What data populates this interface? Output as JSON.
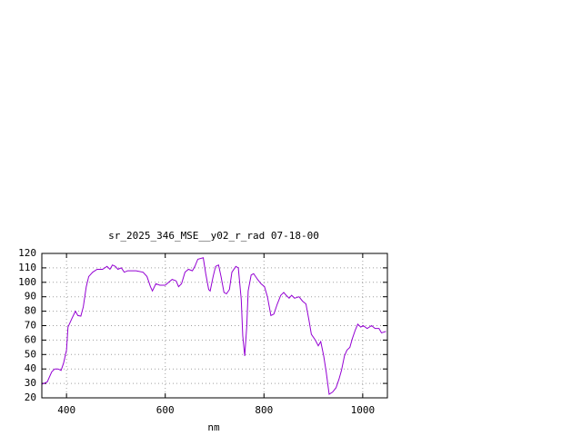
{
  "chart_data": {
    "type": "line",
    "title": "sr_2025_346_MSE__y02_r_rad 07-18-00",
    "x_label": "nm",
    "x": [
      350,
      361,
      370,
      376,
      383,
      389,
      394,
      400,
      403,
      411,
      418,
      423,
      429,
      434,
      440,
      445,
      453,
      462,
      473,
      482,
      488,
      493,
      499,
      504,
      511,
      517,
      524,
      541,
      555,
      563,
      570,
      574,
      581,
      589,
      600,
      607,
      614,
      622,
      627,
      633,
      640,
      647,
      655,
      660,
      666,
      677,
      682,
      688,
      691,
      697,
      702,
      708,
      713,
      719,
      724,
      730,
      735,
      743,
      748,
      754,
      757,
      761,
      765,
      768,
      774,
      779,
      787,
      794,
      801,
      807,
      814,
      820,
      827,
      834,
      840,
      845,
      851,
      856,
      862,
      871,
      878,
      885,
      891,
      896,
      904,
      910,
      915,
      921,
      926,
      932,
      939,
      946,
      952,
      957,
      963,
      968,
      974,
      979,
      985,
      990,
      996,
      1001,
      1009,
      1018,
      1025,
      1033,
      1038,
      1047
    ],
    "series": [
      {
        "color": "#9400d3",
        "values": [
          29.4,
          31,
          38,
          40,
          40,
          39,
          44,
          53,
          69,
          75,
          80,
          77,
          76.6,
          83,
          97,
          104,
          107,
          109,
          109,
          111,
          109,
          112,
          111,
          109,
          110,
          107,
          108,
          108,
          107,
          104,
          97,
          94,
          99,
          98,
          98,
          100,
          102,
          101,
          97,
          99,
          107,
          109,
          108,
          111,
          116,
          117,
          106,
          95,
          94,
          104,
          111,
          112,
          104,
          93,
          92,
          95,
          107,
          111,
          110,
          88,
          63,
          49,
          69,
          94,
          105,
          106,
          102,
          99,
          97,
          90,
          77,
          78,
          85,
          91,
          93,
          91,
          89,
          91,
          89,
          90,
          87,
          85,
          74,
          64,
          60,
          56,
          59,
          49,
          38,
          22.5,
          24,
          27,
          33,
          39,
          49,
          53,
          55,
          61,
          67,
          71,
          69,
          70,
          68,
          70,
          68,
          68,
          65,
          66
        ]
      }
    ],
    "xlim": [
      350,
      1050
    ],
    "ylim": [
      20,
      120
    ],
    "xticks": [
      400,
      600,
      800,
      1000
    ],
    "yticks": [
      20,
      30,
      40,
      50,
      60,
      70,
      80,
      90,
      100,
      110,
      120
    ],
    "grid": true
  }
}
